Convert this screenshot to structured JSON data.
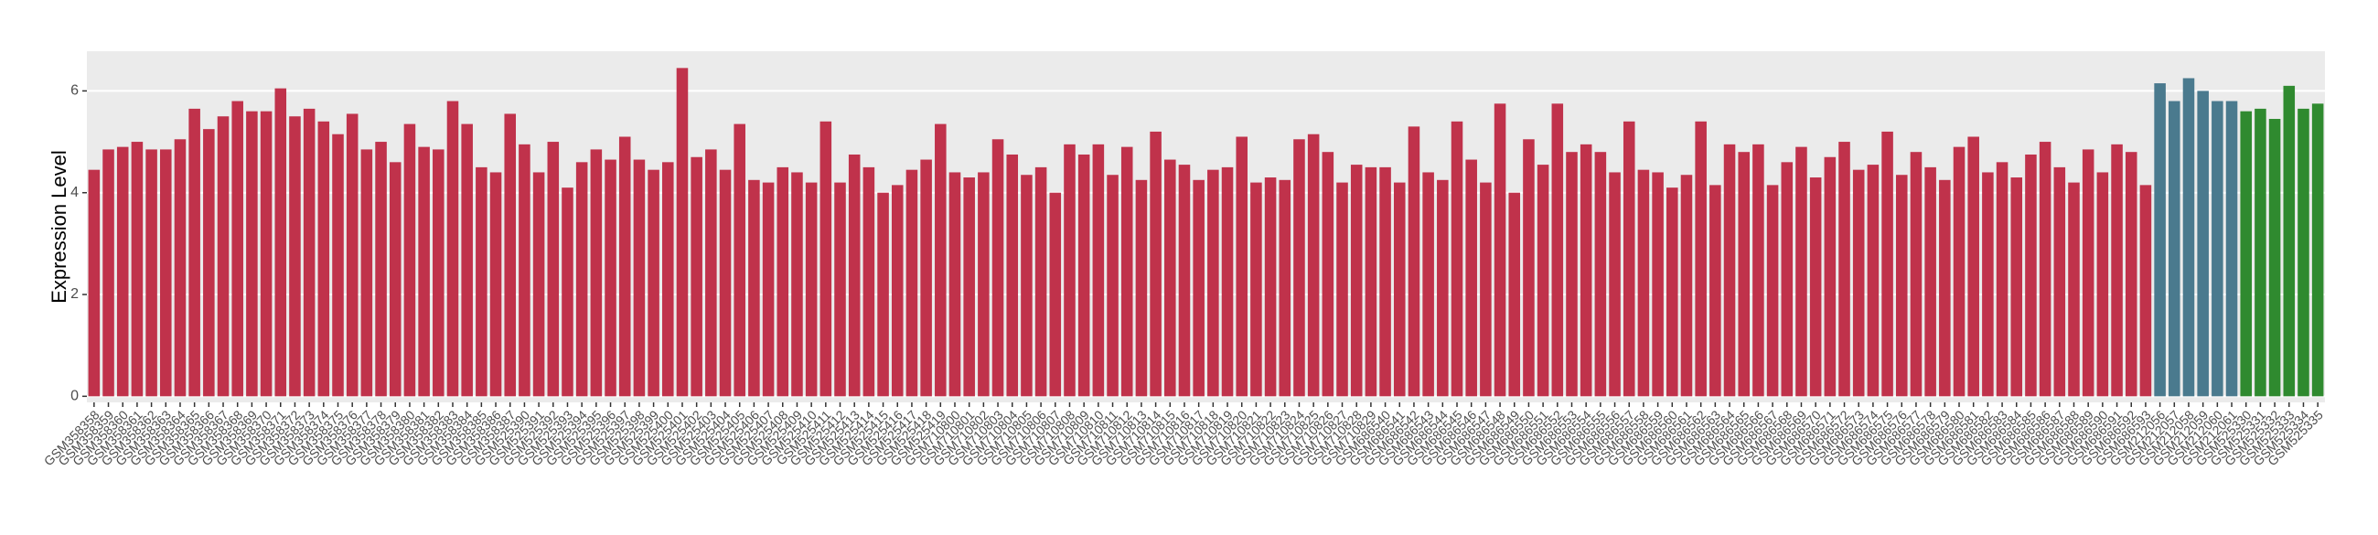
{
  "chart_data": {
    "type": "bar",
    "y_label": "Expression Level",
    "categories": [
      "GSM358358",
      "GSM358359",
      "GSM358360",
      "GSM358361",
      "GSM358362",
      "GSM358363",
      "GSM358364",
      "GSM358365",
      "GSM358366",
      "GSM358367",
      "GSM358368",
      "GSM358369",
      "GSM358370",
      "GSM358371",
      "GSM358372",
      "GSM358373",
      "GSM358374",
      "GSM358375",
      "GSM358376",
      "GSM358377",
      "GSM358378",
      "GSM358379",
      "GSM358380",
      "GSM358381",
      "GSM358382",
      "GSM358383",
      "GSM358384",
      "GSM358385",
      "GSM358386",
      "GSM358387",
      "GSM525390",
      "GSM525391",
      "GSM525392",
      "GSM525393",
      "GSM525394",
      "GSM525395",
      "GSM525396",
      "GSM525397",
      "GSM525398",
      "GSM525399",
      "GSM525400",
      "GSM525401",
      "GSM525402",
      "GSM525403",
      "GSM525404",
      "GSM525405",
      "GSM525406",
      "GSM525407",
      "GSM525408",
      "GSM525409",
      "GSM525410",
      "GSM525411",
      "GSM525412",
      "GSM525413",
      "GSM525414",
      "GSM525415",
      "GSM525416",
      "GSM525417",
      "GSM525418",
      "GSM525419",
      "GSM710800",
      "GSM710801",
      "GSM710802",
      "GSM710803",
      "GSM710804",
      "GSM710805",
      "GSM710806",
      "GSM710807",
      "GSM710808",
      "GSM710809",
      "GSM710810",
      "GSM710811",
      "GSM710812",
      "GSM710813",
      "GSM710814",
      "GSM710815",
      "GSM710816",
      "GSM710817",
      "GSM710818",
      "GSM710819",
      "GSM710820",
      "GSM710821",
      "GSM710822",
      "GSM710823",
      "GSM710824",
      "GSM710825",
      "GSM710826",
      "GSM710827",
      "GSM710828",
      "GSM710829",
      "GSM686540",
      "GSM686541",
      "GSM686542",
      "GSM686543",
      "GSM686544",
      "GSM686545",
      "GSM686546",
      "GSM686547",
      "GSM686548",
      "GSM686549",
      "GSM686550",
      "GSM686551",
      "GSM686552",
      "GSM686553",
      "GSM686554",
      "GSM686555",
      "GSM686556",
      "GSM686557",
      "GSM686558",
      "GSM686559",
      "GSM686560",
      "GSM686561",
      "GSM686562",
      "GSM686563",
      "GSM686564",
      "GSM686565",
      "GSM686566",
      "GSM686567",
      "GSM686568",
      "GSM686569",
      "GSM686570",
      "GSM686571",
      "GSM686572",
      "GSM686573",
      "GSM686574",
      "GSM686575",
      "GSM686576",
      "GSM686577",
      "GSM686578",
      "GSM686579",
      "GSM686580",
      "GSM686581",
      "GSM686582",
      "GSM686583",
      "GSM686584",
      "GSM686585",
      "GSM686586",
      "GSM686587",
      "GSM686588",
      "GSM686589",
      "GSM686590",
      "GSM686591",
      "GSM686592",
      "GSM686593",
      "GSM212056",
      "GSM212057",
      "GSM212058",
      "GSM212059",
      "GSM212060",
      "GSM212061",
      "GSM525330",
      "GSM525331",
      "GSM525332",
      "GSM525333",
      "GSM525334",
      "GSM525335"
    ],
    "values": [
      4.45,
      4.85,
      4.9,
      5.0,
      4.85,
      4.85,
      5.05,
      5.65,
      5.25,
      5.5,
      5.8,
      5.6,
      5.6,
      6.05,
      5.5,
      5.65,
      5.4,
      5.15,
      5.55,
      4.85,
      5.0,
      4.6,
      5.35,
      4.9,
      4.85,
      5.8,
      5.35,
      4.5,
      4.4,
      5.55,
      4.95,
      4.4,
      5.0,
      4.1,
      4.6,
      4.85,
      4.65,
      5.1,
      4.65,
      4.45,
      4.6,
      6.45,
      4.7,
      4.85,
      4.45,
      5.35,
      4.25,
      4.2,
      4.5,
      4.4,
      4.2,
      5.4,
      4.2,
      4.75,
      4.5,
      4.0,
      4.15,
      4.45,
      4.65,
      5.35,
      4.4,
      4.3,
      4.4,
      5.05,
      4.75,
      4.35,
      4.5,
      4.0,
      4.95,
      4.75,
      4.95,
      4.35,
      4.9,
      4.25,
      5.2,
      4.65,
      4.55,
      4.25,
      4.45,
      4.5,
      5.1,
      4.2,
      4.3,
      4.25,
      5.05,
      5.15,
      4.8,
      4.2,
      4.55,
      4.5,
      4.5,
      4.2,
      5.3,
      4.4,
      4.25,
      5.4,
      4.65,
      4.2,
      5.75,
      4.0,
      5.05,
      4.55,
      5.75,
      4.8,
      4.95,
      4.8,
      4.4,
      5.4,
      4.45,
      4.4,
      4.1,
      4.35,
      5.4,
      4.15,
      4.95,
      4.8,
      4.95,
      4.15,
      4.6,
      4.9,
      4.3,
      4.7,
      5.0,
      4.45,
      4.55,
      5.2,
      4.35,
      4.8,
      4.5,
      4.25,
      4.9,
      5.1,
      4.4,
      4.6,
      4.3,
      4.75,
      5.0,
      4.5,
      4.2,
      4.85,
      4.4,
      4.95,
      4.8,
      4.15,
      6.15,
      5.8,
      6.25,
      6.0,
      5.8,
      5.8,
      5.6,
      5.65,
      5.45,
      6.1,
      5.65,
      5.75
    ],
    "colors": [
      "#c0324b",
      "#c0324b",
      "#c0324b",
      "#c0324b",
      "#c0324b",
      "#c0324b",
      "#c0324b",
      "#c0324b",
      "#c0324b",
      "#c0324b",
      "#c0324b",
      "#c0324b",
      "#c0324b",
      "#c0324b",
      "#c0324b",
      "#c0324b",
      "#c0324b",
      "#c0324b",
      "#c0324b",
      "#c0324b",
      "#c0324b",
      "#c0324b",
      "#c0324b",
      "#c0324b",
      "#c0324b",
      "#c0324b",
      "#c0324b",
      "#c0324b",
      "#c0324b",
      "#c0324b",
      "#c0324b",
      "#c0324b",
      "#c0324b",
      "#c0324b",
      "#c0324b",
      "#c0324b",
      "#c0324b",
      "#c0324b",
      "#c0324b",
      "#c0324b",
      "#c0324b",
      "#c0324b",
      "#c0324b",
      "#c0324b",
      "#c0324b",
      "#c0324b",
      "#c0324b",
      "#c0324b",
      "#c0324b",
      "#c0324b",
      "#c0324b",
      "#c0324b",
      "#c0324b",
      "#c0324b",
      "#c0324b",
      "#c0324b",
      "#c0324b",
      "#c0324b",
      "#c0324b",
      "#c0324b",
      "#c0324b",
      "#c0324b",
      "#c0324b",
      "#c0324b",
      "#c0324b",
      "#c0324b",
      "#c0324b",
      "#c0324b",
      "#c0324b",
      "#c0324b",
      "#c0324b",
      "#c0324b",
      "#c0324b",
      "#c0324b",
      "#c0324b",
      "#c0324b",
      "#c0324b",
      "#c0324b",
      "#c0324b",
      "#c0324b",
      "#c0324b",
      "#c0324b",
      "#c0324b",
      "#c0324b",
      "#c0324b",
      "#c0324b",
      "#c0324b",
      "#c0324b",
      "#c0324b",
      "#c0324b",
      "#c0324b",
      "#c0324b",
      "#c0324b",
      "#c0324b",
      "#c0324b",
      "#c0324b",
      "#c0324b",
      "#c0324b",
      "#c0324b",
      "#c0324b",
      "#c0324b",
      "#c0324b",
      "#c0324b",
      "#c0324b",
      "#c0324b",
      "#c0324b",
      "#c0324b",
      "#c0324b",
      "#c0324b",
      "#c0324b",
      "#c0324b",
      "#c0324b",
      "#c0324b",
      "#c0324b",
      "#c0324b",
      "#c0324b",
      "#c0324b",
      "#c0324b",
      "#c0324b",
      "#c0324b",
      "#c0324b",
      "#c0324b",
      "#c0324b",
      "#c0324b",
      "#c0324b",
      "#c0324b",
      "#c0324b",
      "#c0324b",
      "#c0324b",
      "#c0324b",
      "#c0324b",
      "#c0324b",
      "#c0324b",
      "#c0324b",
      "#c0324b",
      "#c0324b",
      "#c0324b",
      "#c0324b",
      "#c0324b",
      "#c0324b",
      "#c0324b",
      "#c0324b",
      "#c0324b",
      "#c0324b",
      "#4a7a8e",
      "#4a7a8e",
      "#4a7a8e",
      "#4a7a8e",
      "#4a7a8e",
      "#4a7a8e",
      "#2f8a2f",
      "#2f8a2f",
      "#2f8a2f",
      "#2f8a2f",
      "#2f8a2f",
      "#2f8a2f"
    ],
    "ylim": [
      -0.12,
      6.78
    ],
    "yticks": [
      0,
      2,
      4,
      6
    ],
    "grid": true
  }
}
